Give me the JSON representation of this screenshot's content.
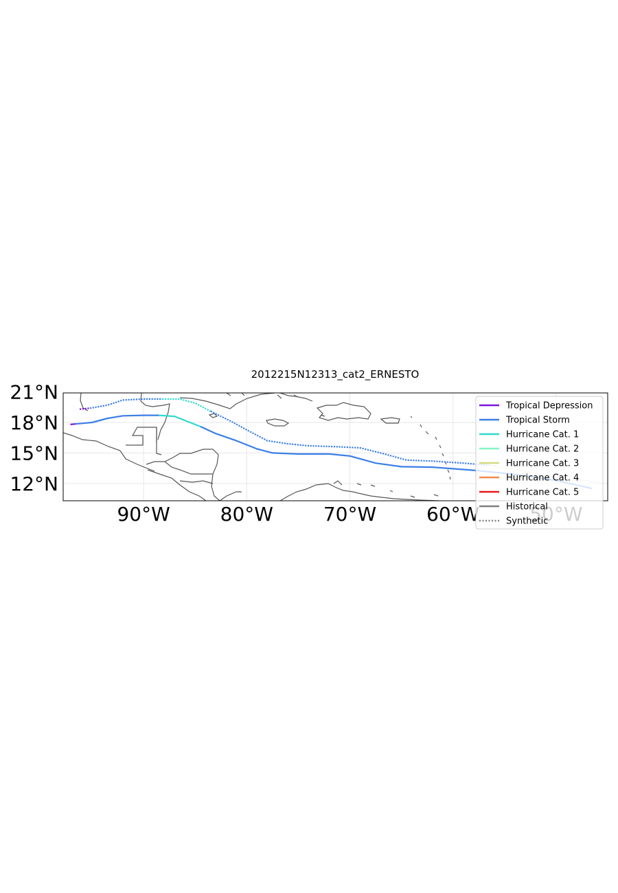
{
  "title": "2012215N12313_cat2_ERNESTO",
  "chart_data": {
    "type": "line",
    "title": "2012215N12313_cat2_ERNESTO",
    "projection": "PlateCarree",
    "xlim": [
      -97.8,
      -45.0
    ],
    "ylim": [
      10.3,
      20.9
    ],
    "xticks": [
      {
        "value": -90,
        "label": "90°W"
      },
      {
        "value": -80,
        "label": "80°W"
      },
      {
        "value": -70,
        "label": "70°W"
      },
      {
        "value": -60,
        "label": "60°W"
      },
      {
        "value": -50,
        "label": "50°W"
      }
    ],
    "yticks": [
      {
        "value": 12,
        "label": "12°N"
      },
      {
        "value": 15,
        "label": "15°N"
      },
      {
        "value": 18,
        "label": "18°N"
      },
      {
        "value": 21,
        "label": "21°N"
      }
    ],
    "grid": true,
    "legend_position": "top-right",
    "legend": [
      {
        "label": "Tropical Depression",
        "color": "#7b14e0",
        "style": "solid"
      },
      {
        "label": "Tropical Storm",
        "color": "#3a7ee6",
        "style": "solid"
      },
      {
        "label": "Hurricane Cat. 1",
        "color": "#2edbcb",
        "style": "solid"
      },
      {
        "label": "Hurricane Cat. 2",
        "color": "#82f5c2",
        "style": "solid"
      },
      {
        "label": "Hurricane Cat. 3",
        "color": "#d4d982",
        "style": "solid"
      },
      {
        "label": "Hurricane Cat. 4",
        "color": "#f08a4b",
        "style": "solid"
      },
      {
        "label": "Hurricane Cat. 5",
        "color": "#e81818",
        "style": "solid"
      },
      {
        "label": "Historical",
        "color": "#808080",
        "style": "solid"
      },
      {
        "label": "Synthetic",
        "color": "#808080",
        "style": "dotted"
      }
    ],
    "series": [
      {
        "style": "solid",
        "segments": [
          {
            "color": "#7b14e0",
            "points": [
              [
                -97.1,
                17.8
              ],
              [
                -96.6,
                17.85
              ]
            ]
          },
          {
            "color": "#3a7ee6",
            "points": [
              [
                -96.6,
                17.85
              ],
              [
                -95.0,
                18.0
              ],
              [
                -93.5,
                18.4
              ],
              [
                -92.0,
                18.65
              ],
              [
                -90.0,
                18.7
              ],
              [
                -88.5,
                18.7
              ]
            ]
          },
          {
            "color": "#2edbcb",
            "points": [
              [
                -88.5,
                18.7
              ],
              [
                -87.0,
                18.6
              ],
              [
                -85.5,
                18.0
              ],
              [
                -84.5,
                17.6
              ]
            ]
          },
          {
            "color": "#3a7ee6",
            "points": [
              [
                -84.5,
                17.6
              ],
              [
                -83.0,
                16.9
              ],
              [
                -81.0,
                16.2
              ],
              [
                -79.0,
                15.4
              ],
              [
                -77.5,
                15.0
              ],
              [
                -75.0,
                14.9
              ],
              [
                -72.0,
                14.9
              ],
              [
                -70.0,
                14.7
              ],
              [
                -67.5,
                14.0
              ],
              [
                -65.0,
                13.65
              ],
              [
                -62.0,
                13.6
              ],
              [
                -58.0,
                13.3
              ],
              [
                -54.0,
                12.9
              ],
              [
                -50.0,
                12.3
              ],
              [
                -46.5,
                11.5
              ]
            ]
          }
        ]
      },
      {
        "style": "dotted",
        "segments": [
          {
            "color": "#7b14e0",
            "points": [
              [
                -96.2,
                19.3
              ],
              [
                -95.2,
                19.4
              ]
            ]
          },
          {
            "color": "#3a7ee6",
            "points": [
              [
                -95.2,
                19.4
              ],
              [
                -93.5,
                19.7
              ],
              [
                -92.0,
                20.2
              ],
              [
                -90.0,
                20.3
              ],
              [
                -88.2,
                20.3
              ]
            ]
          },
          {
            "color": "#2edbcb",
            "points": [
              [
                -88.2,
                20.3
              ],
              [
                -86.5,
                20.3
              ],
              [
                -85.0,
                19.9
              ],
              [
                -83.5,
                19.1
              ]
            ]
          },
          {
            "color": "#3a7ee6",
            "points": [
              [
                -83.5,
                19.1
              ],
              [
                -81.5,
                18.1
              ],
              [
                -79.5,
                17.0
              ],
              [
                -78.0,
                16.2
              ],
              [
                -76.0,
                15.9
              ],
              [
                -74.0,
                15.7
              ],
              [
                -71.0,
                15.6
              ],
              [
                -69.0,
                15.5
              ],
              [
                -67.0,
                15.0
              ],
              [
                -64.5,
                14.3
              ],
              [
                -62.0,
                14.2
              ],
              [
                -59.0,
                14.0
              ],
              [
                -56.5,
                13.8
              ]
            ]
          },
          {
            "color": "#d4d982",
            "points": [
              [
                -56.5,
                13.8
              ],
              [
                -53.5,
                13.3
              ],
              [
                -52.0,
                13.0
              ]
            ]
          },
          {
            "color": "#d9b8f5",
            "points": [
              [
                -52.0,
                13.0
              ],
              [
                -48.5,
                12.5
              ],
              [
                -45.5,
                12.0
              ]
            ]
          }
        ]
      }
    ]
  }
}
